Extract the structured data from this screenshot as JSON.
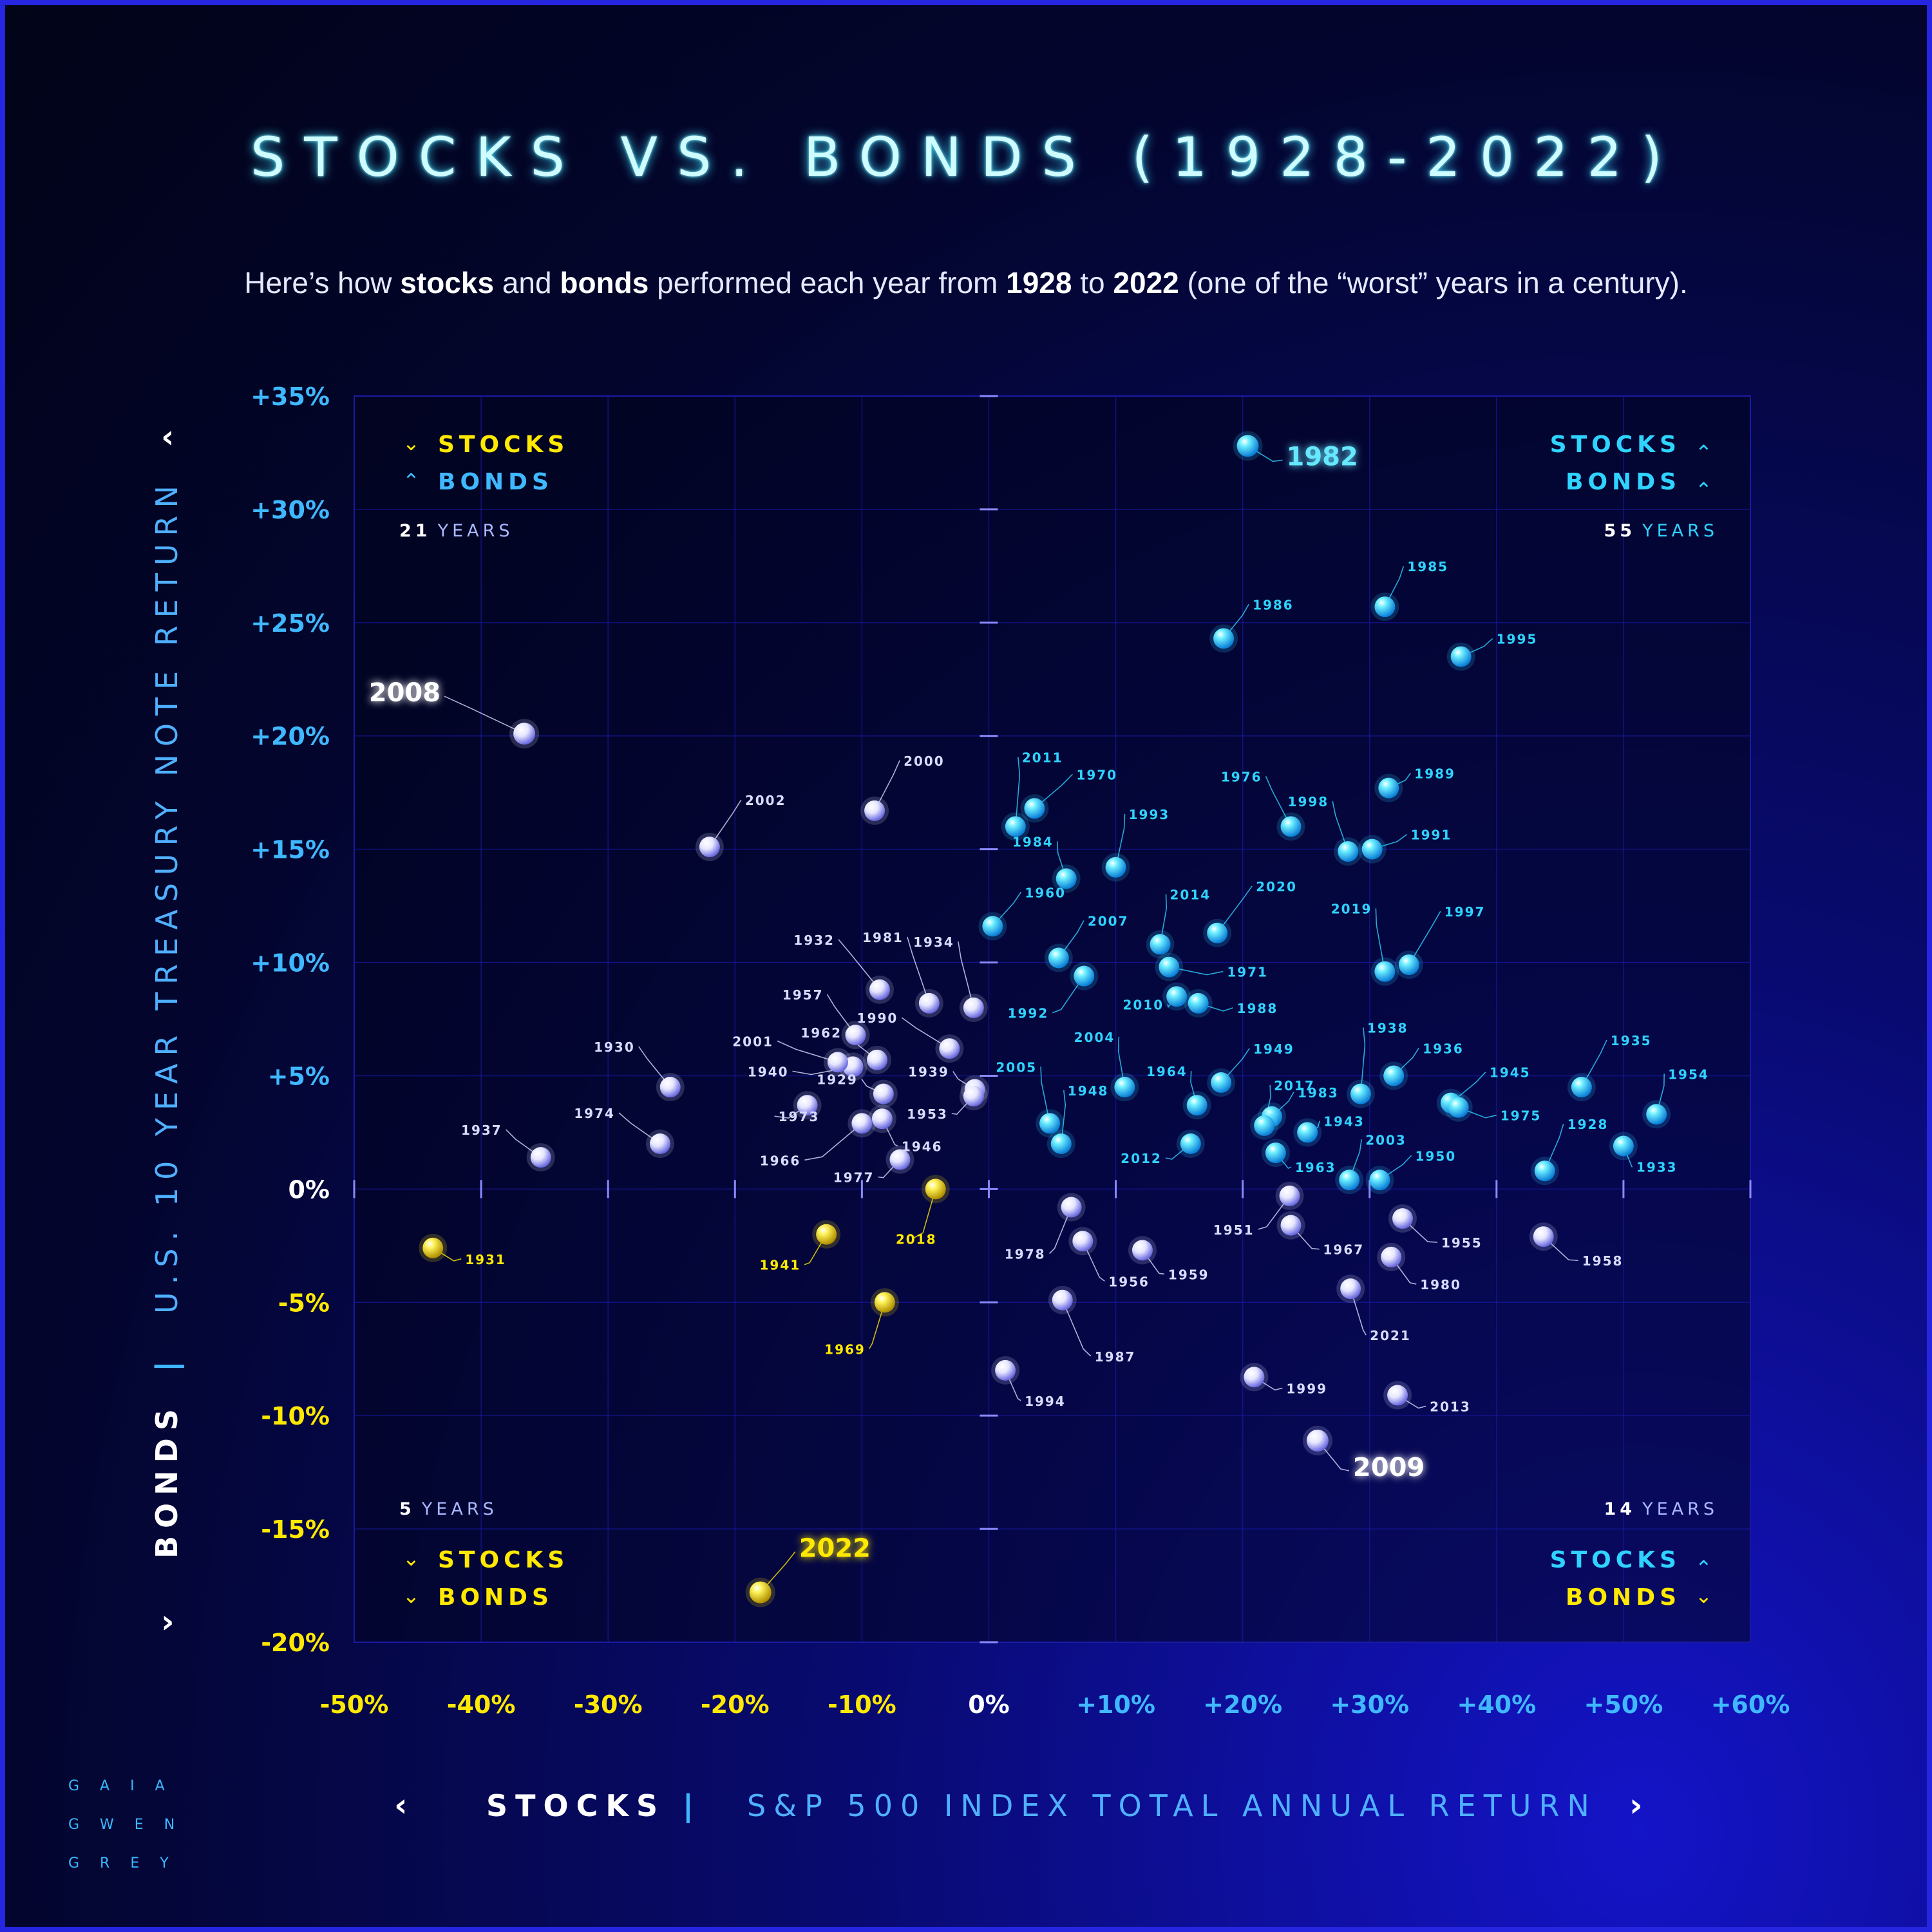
{
  "title": "STOCKS VS. BONDS (1928-2022)",
  "subtitle": {
    "p1": "Here’s how ",
    "b1": "stocks",
    "p2": " and ",
    "b2": "bonds",
    "p3": " performed each year from ",
    "b3": "1928",
    "p4": " to ",
    "b4": "2022",
    "p5": " (one of the “worst” years in a century)."
  },
  "colors": {
    "up_up": "#2fd3ff",
    "down_up": "#d9dcff",
    "up_down": "#d9dcff",
    "down_down": "#ffe900",
    "axis": "#4a4aff",
    "tick_positive": "#3fb8ff",
    "tick_negative": "#ffe900"
  },
  "quadrants": {
    "top_left": {
      "stocks": "STOCKS",
      "bonds": "BONDS",
      "count": "21",
      "years": "YEARS"
    },
    "top_right": {
      "stocks": "STOCKS",
      "bonds": "BONDS",
      "count": "55",
      "years": "YEARS"
    },
    "bottom_left": {
      "stocks": "STOCKS",
      "bonds": "BONDS",
      "count": "5",
      "years": "YEARS"
    },
    "bottom_right": {
      "stocks": "STOCKS",
      "bonds": "BONDS",
      "count": "14",
      "years": "YEARS"
    }
  },
  "x_axis_title": {
    "bold": "STOCKS",
    "sep": "|",
    "rest": "S&P 500 INDEX TOTAL ANNUAL RETURN"
  },
  "y_axis_title": {
    "bold": "BONDS",
    "sep": "|",
    "rest": "U.S. 10 YEAR TREASURY NOTE RETURN"
  },
  "brand": {
    "line1": "GAIA",
    "line2": "GWEN",
    "line3": "GREY"
  },
  "chart_data": {
    "type": "scatter",
    "title": "STOCKS VS. BONDS (1928-2022)",
    "xlabel": "STOCKS | S&P 500 INDEX TOTAL ANNUAL RETURN",
    "ylabel": "BONDS | U.S. 10 YEAR TREASURY NOTE RETURN",
    "xlim": [
      -50,
      60
    ],
    "ylim": [
      -20,
      35
    ],
    "x_ticks": [
      "-50%",
      "-40%",
      "-30%",
      "-20%",
      "-10%",
      "0%",
      "+10%",
      "+20%",
      "+30%",
      "+40%",
      "+50%",
      "+60%"
    ],
    "y_ticks": [
      "+35%",
      "+30%",
      "+25%",
      "+20%",
      "+15%",
      "+10%",
      "+5%",
      "0%",
      "-5%",
      "-10%",
      "-15%",
      "-20%"
    ],
    "grid": true,
    "points": [
      {
        "year": "1928",
        "x": 43.8,
        "y": 0.8
      },
      {
        "year": "1929",
        "x": -8.3,
        "y": 4.2
      },
      {
        "year": "1930",
        "x": -25.1,
        "y": 4.5
      },
      {
        "year": "1931",
        "x": -43.8,
        "y": -2.6
      },
      {
        "year": "1932",
        "x": -8.6,
        "y": 8.8
      },
      {
        "year": "1933",
        "x": 50.0,
        "y": 1.9
      },
      {
        "year": "1934",
        "x": -1.2,
        "y": 8.0
      },
      {
        "year": "1935",
        "x": 46.7,
        "y": 4.5
      },
      {
        "year": "1936",
        "x": 31.9,
        "y": 5.0
      },
      {
        "year": "1937",
        "x": -35.3,
        "y": 1.4
      },
      {
        "year": "1938",
        "x": 29.3,
        "y": 4.2
      },
      {
        "year": "1939",
        "x": -1.1,
        "y": 4.4
      },
      {
        "year": "1940",
        "x": -10.7,
        "y": 5.4
      },
      {
        "year": "1941",
        "x": -12.8,
        "y": -2.0
      },
      {
        "year": "1943",
        "x": 25.1,
        "y": 2.5
      },
      {
        "year": "1945",
        "x": 36.4,
        "y": 3.8
      },
      {
        "year": "1946",
        "x": -8.4,
        "y": 3.1
      },
      {
        "year": "1948",
        "x": 5.7,
        "y": 2.0
      },
      {
        "year": "1949",
        "x": 18.3,
        "y": 4.7
      },
      {
        "year": "1950",
        "x": 30.8,
        "y": 0.4
      },
      {
        "year": "1951",
        "x": 23.7,
        "y": -0.3
      },
      {
        "year": "1953",
        "x": -1.2,
        "y": 4.1
      },
      {
        "year": "1954",
        "x": 52.6,
        "y": 3.3
      },
      {
        "year": "1955",
        "x": 32.6,
        "y": -1.3
      },
      {
        "year": "1956",
        "x": 7.4,
        "y": -2.3
      },
      {
        "year": "1957",
        "x": -10.5,
        "y": 6.8
      },
      {
        "year": "1958",
        "x": 43.7,
        "y": -2.1
      },
      {
        "year": "1959",
        "x": 12.1,
        "y": -2.7
      },
      {
        "year": "1960",
        "x": 0.3,
        "y": 11.6
      },
      {
        "year": "1962",
        "x": -8.8,
        "y": 5.7
      },
      {
        "year": "1963",
        "x": 22.6,
        "y": 1.6
      },
      {
        "year": "1964",
        "x": 16.4,
        "y": 3.7
      },
      {
        "year": "1966",
        "x": -10.0,
        "y": 2.9
      },
      {
        "year": "1967",
        "x": 23.8,
        "y": -1.6
      },
      {
        "year": "1969",
        "x": -8.2,
        "y": -5.0
      },
      {
        "year": "1970",
        "x": 3.6,
        "y": 16.8
      },
      {
        "year": "1971",
        "x": 14.2,
        "y": 9.8
      },
      {
        "year": "1973",
        "x": -14.3,
        "y": 3.7
      },
      {
        "year": "1974",
        "x": -25.9,
        "y": 2.0
      },
      {
        "year": "1975",
        "x": 37.0,
        "y": 3.6
      },
      {
        "year": "1976",
        "x": 23.8,
        "y": 16.0
      },
      {
        "year": "1977",
        "x": -7.0,
        "y": 1.3
      },
      {
        "year": "1978",
        "x": 6.5,
        "y": -0.8
      },
      {
        "year": "1980",
        "x": 31.7,
        "y": -3.0
      },
      {
        "year": "1981",
        "x": -4.7,
        "y": 8.2
      },
      {
        "year": "1982",
        "x": 20.4,
        "y": 32.8
      },
      {
        "year": "1983",
        "x": 22.3,
        "y": 3.2
      },
      {
        "year": "1984",
        "x": 6.1,
        "y": 13.7
      },
      {
        "year": "1985",
        "x": 31.2,
        "y": 25.7
      },
      {
        "year": "1986",
        "x": 18.5,
        "y": 24.3
      },
      {
        "year": "1987",
        "x": 5.8,
        "y": -4.9
      },
      {
        "year": "1988",
        "x": 16.5,
        "y": 8.2
      },
      {
        "year": "1989",
        "x": 31.5,
        "y": 17.7
      },
      {
        "year": "1990",
        "x": -3.1,
        "y": 6.2
      },
      {
        "year": "1991",
        "x": 30.2,
        "y": 15.0
      },
      {
        "year": "1992",
        "x": 7.5,
        "y": 9.4
      },
      {
        "year": "1993",
        "x": 10.0,
        "y": 14.2
      },
      {
        "year": "1994",
        "x": 1.3,
        "y": -8.0
      },
      {
        "year": "1995",
        "x": 37.2,
        "y": 23.5
      },
      {
        "year": "1997",
        "x": 33.1,
        "y": 9.9
      },
      {
        "year": "1998",
        "x": 28.3,
        "y": 14.9
      },
      {
        "year": "1999",
        "x": 20.9,
        "y": -8.3
      },
      {
        "year": "2000",
        "x": -9.0,
        "y": 16.7
      },
      {
        "year": "2001",
        "x": -11.9,
        "y": 5.6
      },
      {
        "year": "2002",
        "x": -22.0,
        "y": 15.1
      },
      {
        "year": "2003",
        "x": 28.4,
        "y": 0.4
      },
      {
        "year": "2004",
        "x": 10.7,
        "y": 4.5
      },
      {
        "year": "2005",
        "x": 4.8,
        "y": 2.9
      },
      {
        "year": "2007",
        "x": 5.5,
        "y": 10.2
      },
      {
        "year": "2008",
        "x": -36.6,
        "y": 20.1
      },
      {
        "year": "2009",
        "x": 25.9,
        "y": -11.1
      },
      {
        "year": "2010",
        "x": 14.8,
        "y": 8.5
      },
      {
        "year": "2011",
        "x": 2.1,
        "y": 16.0
      },
      {
        "year": "2012",
        "x": 15.9,
        "y": 2.0
      },
      {
        "year": "2013",
        "x": 32.2,
        "y": -9.1
      },
      {
        "year": "2014",
        "x": 13.5,
        "y": 10.8
      },
      {
        "year": "2017",
        "x": 21.7,
        "y": 2.8
      },
      {
        "year": "2018",
        "x": -4.2,
        "y": 0.0
      },
      {
        "year": "2019",
        "x": 31.2,
        "y": 9.6
      },
      {
        "year": "2020",
        "x": 18.0,
        "y": 11.3
      },
      {
        "year": "2021",
        "x": 28.5,
        "y": -4.4
      },
      {
        "year": "2022",
        "x": -18.0,
        "y": -17.8
      }
    ]
  }
}
